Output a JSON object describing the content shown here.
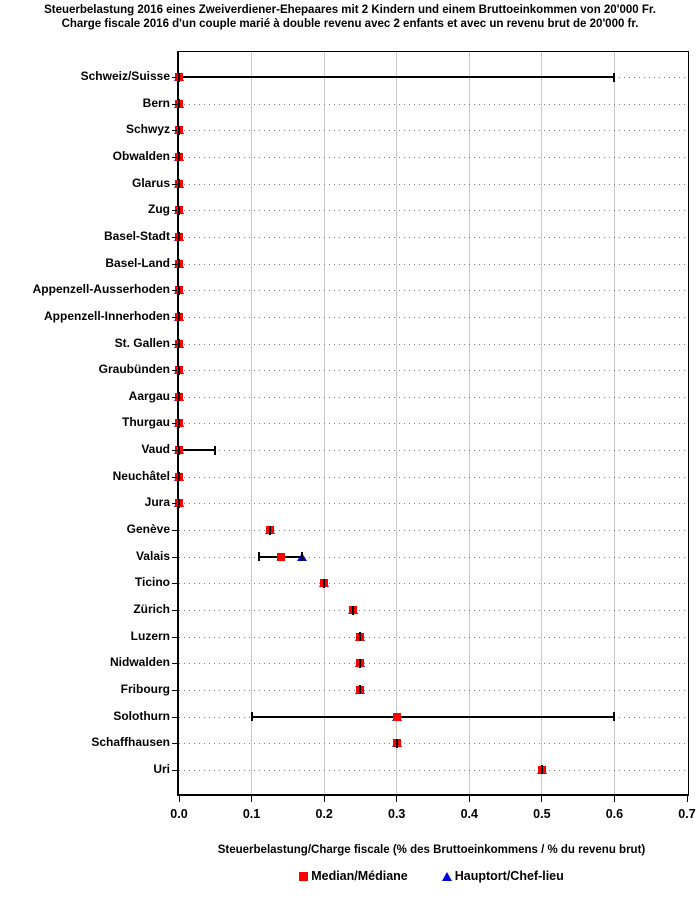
{
  "title": {
    "line1_de": "Steuerbelastung 2016 eines Zweiverdiener-Ehepaares mit 2 Kindern und einem Bruttoeinkommen von 20'000 Fr.",
    "line2_fr": "Charge fiscale 2016 d'un couple marié à double revenu avec 2 enfants et avec un revenu brut de 20'000 fr."
  },
  "colors": {
    "median_marker": "#ff0000",
    "hauptort_marker": "#0000cc",
    "range_line": "#000000",
    "gridline": "#c9c9c9",
    "dotted_rowline": "#808080"
  },
  "legend": {
    "median_label": "Median/Médiane",
    "hauptort_label": "Hauptort/Chef-lieu"
  },
  "chart_data": {
    "type": "scatter",
    "orientation": "horizontal",
    "title": "Steuerbelastung 2016 eines Zweiverdiener-Ehepaares mit 2 Kindern und einem Bruttoeinkommen von 20'000 Fr. / Charge fiscale 2016 d'un couple marié à double revenu avec 2 enfants et avec un revenu brut de 20'000 fr.",
    "xlabel": "Steuerbelastung/Charge fiscale (% des Bruttoeinkommens / % du revenu brut)",
    "xlim": [
      0.0,
      0.7
    ],
    "x_ticks": [
      0.0,
      0.1,
      0.2,
      0.3,
      0.4,
      0.5,
      0.6,
      0.7
    ],
    "x_tick_labels": [
      "0.0",
      "0.1",
      "0.2",
      "0.3",
      "0.4",
      "0.5",
      "0.6",
      "0.7"
    ],
    "grid": "vertical solid gray lines at each 0.1; horizontal dotted gray line per category row",
    "legend_position": "bottom-center",
    "series_info": [
      {
        "name": "Median/Médiane",
        "marker": "square",
        "color": "#ff0000"
      },
      {
        "name": "Hauptort/Chef-lieu",
        "marker": "triangle",
        "color": "#0000cc"
      },
      {
        "name": "Min-Max range",
        "marker": "line-with-caps",
        "color": "#000000"
      }
    ],
    "rows": [
      {
        "label": "Schweiz/Suisse",
        "median": 0.0,
        "hauptort": 0.0,
        "min": 0.0,
        "max": 0.6
      },
      {
        "label": "Bern",
        "median": 0.0,
        "hauptort": 0.0,
        "min": 0.0,
        "max": 0.0
      },
      {
        "label": "Schwyz",
        "median": 0.0,
        "hauptort": 0.0,
        "min": 0.0,
        "max": 0.0
      },
      {
        "label": "Obwalden",
        "median": 0.0,
        "hauptort": 0.0,
        "min": 0.0,
        "max": 0.0
      },
      {
        "label": "Glarus",
        "median": 0.0,
        "hauptort": 0.0,
        "min": 0.0,
        "max": 0.0
      },
      {
        "label": "Zug",
        "median": 0.0,
        "hauptort": 0.0,
        "min": 0.0,
        "max": 0.0
      },
      {
        "label": "Basel-Stadt",
        "median": 0.0,
        "hauptort": 0.0,
        "min": 0.0,
        "max": 0.0
      },
      {
        "label": "Basel-Land",
        "median": 0.0,
        "hauptort": 0.0,
        "min": 0.0,
        "max": 0.0
      },
      {
        "label": "Appenzell-Ausserhoden",
        "median": 0.0,
        "hauptort": 0.0,
        "min": 0.0,
        "max": 0.0
      },
      {
        "label": "Appenzell-Innerhoden",
        "median": 0.0,
        "hauptort": 0.0,
        "min": 0.0,
        "max": 0.0
      },
      {
        "label": "St. Gallen",
        "median": 0.0,
        "hauptort": 0.0,
        "min": 0.0,
        "max": 0.0
      },
      {
        "label": "Graubünden",
        "median": 0.0,
        "hauptort": 0.0,
        "min": 0.0,
        "max": 0.0
      },
      {
        "label": "Aargau",
        "median": 0.0,
        "hauptort": 0.0,
        "min": 0.0,
        "max": 0.0
      },
      {
        "label": "Thurgau",
        "median": 0.0,
        "hauptort": 0.0,
        "min": 0.0,
        "max": 0.0
      },
      {
        "label": "Vaud",
        "median": 0.0,
        "hauptort": 0.0,
        "min": 0.0,
        "max": 0.05
      },
      {
        "label": "Neuchâtel",
        "median": 0.0,
        "hauptort": 0.0,
        "min": 0.0,
        "max": 0.0
      },
      {
        "label": "Jura",
        "median": 0.0,
        "hauptort": 0.0,
        "min": 0.0,
        "max": 0.0
      },
      {
        "label": "Genève",
        "median": 0.125,
        "hauptort": 0.125,
        "min": 0.125,
        "max": 0.125
      },
      {
        "label": "Valais",
        "median": 0.14,
        "hauptort": 0.17,
        "min": 0.11,
        "max": 0.17
      },
      {
        "label": "Ticino",
        "median": 0.2,
        "hauptort": 0.2,
        "min": 0.2,
        "max": 0.2
      },
      {
        "label": "Zürich",
        "median": 0.24,
        "hauptort": 0.24,
        "min": 0.24,
        "max": 0.24
      },
      {
        "label": "Luzern",
        "median": 0.25,
        "hauptort": 0.25,
        "min": 0.25,
        "max": 0.25
      },
      {
        "label": "Nidwalden",
        "median": 0.25,
        "hauptort": 0.25,
        "min": 0.25,
        "max": 0.25
      },
      {
        "label": "Fribourg",
        "median": 0.25,
        "hauptort": 0.25,
        "min": 0.25,
        "max": 0.25
      },
      {
        "label": "Solothurn",
        "median": 0.3,
        "hauptort": 0.3,
        "min": 0.1,
        "max": 0.6
      },
      {
        "label": "Schaffhausen",
        "median": 0.3,
        "hauptort": 0.3,
        "min": 0.3,
        "max": 0.3
      },
      {
        "label": "Uri",
        "median": 0.5,
        "hauptort": 0.5,
        "min": 0.5,
        "max": 0.5
      }
    ]
  }
}
